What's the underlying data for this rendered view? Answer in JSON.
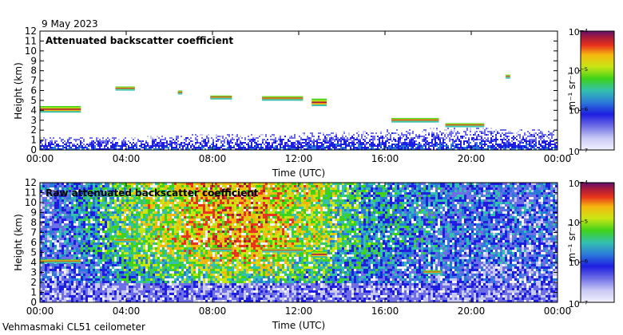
{
  "date_label": "9 May 2023",
  "footer_label": "Vehmasmaki CL51 ceilometer",
  "colors": {
    "scale": [
      "#f2f2ff",
      "#c8c8f5",
      "#6e6ee6",
      "#1e1ee0",
      "#2a7ad8",
      "#34c0b0",
      "#3fd21a",
      "#c8e614",
      "#f5b70f",
      "#e8341c",
      "#a51a3c",
      "#60106e"
    ],
    "frame": "#000000"
  },
  "chart_data": [
    {
      "type": "heatmap",
      "title": "Attenuated backscatter coefficient",
      "xlabel": "Time (UTC)",
      "ylabel": "Height (km)",
      "xlim": [
        0,
        24
      ],
      "ylim": [
        0,
        12
      ],
      "xticks": [
        "00:00",
        "04:00",
        "08:00",
        "12:00",
        "16:00",
        "20:00",
        "00:00"
      ],
      "yticks": [
        "0",
        "1",
        "2",
        "3",
        "4",
        "5",
        "6",
        "7",
        "8",
        "9",
        "10",
        "11",
        "12"
      ],
      "colorbar": {
        "unit": "m⁻¹ sr⁻¹",
        "ticks": [
          "10⁻⁴",
          "10⁻⁵",
          "10⁻⁶",
          "10⁻⁷"
        ],
        "range_log10": [
          -7,
          -4
        ]
      },
      "features": [
        {
          "kind": "boundary_layer",
          "t_start": 0,
          "t_end": 24,
          "top_km": [
            1.2,
            1.3,
            1.2,
            1.4,
            1.5,
            1.5,
            1.6,
            1.8,
            2.0,
            2.1,
            2.2,
            2.0,
            1.9
          ]
        },
        {
          "kind": "cloud",
          "t_start": 0.0,
          "t_end": 1.9,
          "h_km": 4.1,
          "thick_km": 0.5
        },
        {
          "kind": "cloud",
          "t_start": 3.5,
          "t_end": 4.4,
          "h_km": 6.2,
          "thick_km": 0.25
        },
        {
          "kind": "cloud",
          "t_start": 6.4,
          "t_end": 6.6,
          "h_km": 5.8,
          "thick_km": 0.2
        },
        {
          "kind": "cloud",
          "t_start": 7.9,
          "t_end": 8.9,
          "h_km": 5.3,
          "thick_km": 0.2
        },
        {
          "kind": "cloud",
          "t_start": 10.3,
          "t_end": 12.2,
          "h_km": 5.2,
          "thick_km": 0.3
        },
        {
          "kind": "cloud",
          "t_start": 12.6,
          "t_end": 13.3,
          "h_km": 4.8,
          "thick_km": 0.6
        },
        {
          "kind": "cloud",
          "t_start": 16.3,
          "t_end": 18.5,
          "h_km": 3.0,
          "thick_km": 0.3
        },
        {
          "kind": "cloud",
          "t_start": 18.8,
          "t_end": 20.6,
          "h_km": 2.5,
          "thick_km": 0.25
        },
        {
          "kind": "cloud",
          "t_start": 21.6,
          "t_end": 21.8,
          "h_km": 7.4,
          "thick_km": 0.2
        }
      ]
    },
    {
      "type": "heatmap",
      "title": "Raw attenuated backscatter coefficient",
      "xlabel": "Time (UTC)",
      "ylabel": "Height (km)",
      "xlim": [
        0,
        24
      ],
      "ylim": [
        0,
        12
      ],
      "xticks": [
        "00:00",
        "04:00",
        "08:00",
        "12:00",
        "16:00",
        "20:00",
        "00:00"
      ],
      "yticks": [
        "0",
        "1",
        "2",
        "3",
        "4",
        "5",
        "6",
        "7",
        "8",
        "9",
        "10",
        "11",
        "12"
      ],
      "colorbar": {
        "unit": "m⁻¹ sr⁻¹",
        "ticks": [
          "10⁻⁴",
          "10⁻⁵",
          "10⁻⁶",
          "10⁻⁷"
        ],
        "range_log10": [
          -7,
          -4
        ]
      },
      "features": [
        {
          "kind": "noise_field",
          "intensity_by_hour": [
            0.25,
            0.3,
            0.38,
            0.45,
            0.55,
            0.6,
            0.62,
            0.68,
            0.72,
            0.75,
            0.72,
            0.68,
            0.62,
            0.6,
            0.5,
            0.44,
            0.4,
            0.38,
            0.35,
            0.32,
            0.3,
            0.3,
            0.28,
            0.27,
            0.26
          ]
        },
        {
          "kind": "cloud",
          "t_start": 0.0,
          "t_end": 1.9,
          "h_km": 4.1,
          "thick_km": 0.2
        },
        {
          "kind": "cloud",
          "t_start": 3.5,
          "t_end": 4.4,
          "h_km": 6.2,
          "thick_km": 0.15
        },
        {
          "kind": "cloud",
          "t_start": 7.9,
          "t_end": 8.9,
          "h_km": 5.3,
          "thick_km": 0.15
        },
        {
          "kind": "cloud",
          "t_start": 10.3,
          "t_end": 12.2,
          "h_km": 5.2,
          "thick_km": 0.2
        },
        {
          "kind": "cloud",
          "t_start": 12.6,
          "t_end": 13.3,
          "h_km": 4.8,
          "thick_km": 0.5
        },
        {
          "kind": "cloud",
          "t_start": 17.8,
          "t_end": 18.6,
          "h_km": 3.0,
          "thick_km": 0.15
        }
      ]
    }
  ]
}
